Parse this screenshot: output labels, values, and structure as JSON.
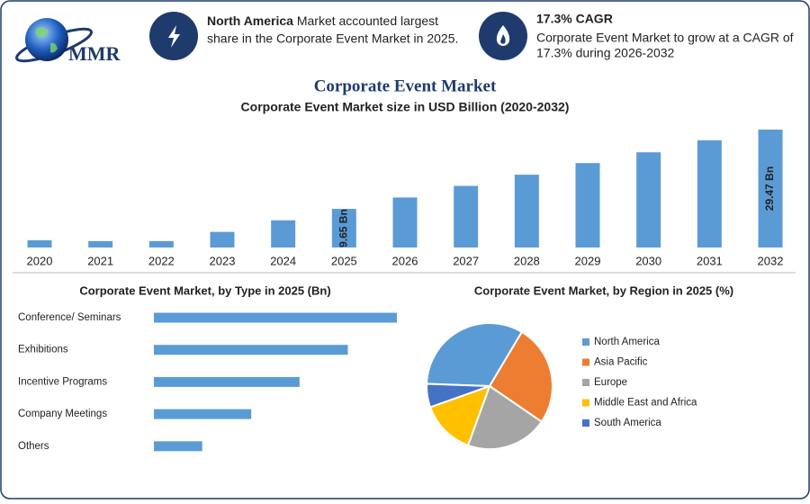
{
  "header": {
    "logo_text": "MMR",
    "info_1": {
      "bold": "North America",
      "line_1": "Market accounted largest",
      "line_2": "share in the Corporate Event Market in 2025."
    },
    "info_2": {
      "bold": "17.3% CAGR",
      "line_1": "Corporate Event Market to grow at a CAGR of",
      "line_2": "17.3% during 2026-2032"
    },
    "title": "Corporate Event Market"
  },
  "chart_data": [
    {
      "type": "bar",
      "title": "Corporate Event Market size in USD Billion (2020-2032)",
      "categories": [
        "2020",
        "2021",
        "2022",
        "2023",
        "2024",
        "2025",
        "2026",
        "2027",
        "2028",
        "2029",
        "2030",
        "2031",
        "2032"
      ],
      "values": [
        1.8,
        1.6,
        1.6,
        3.9,
        6.8,
        9.65,
        12.5,
        15.4,
        18.2,
        21.1,
        23.8,
        26.8,
        29.47
      ],
      "value_labels": [
        null,
        null,
        null,
        null,
        null,
        "9.65 Bn",
        null,
        null,
        null,
        null,
        null,
        null,
        "29.47 Bn"
      ],
      "color": "#5b9bd5"
    },
    {
      "type": "hbar",
      "title": "Corporate Event Market, by Type in 2025 (Bn)",
      "categories": [
        "Conference/ Seminars",
        "Exhibitions",
        "Incentive Programs",
        "Company Meetings",
        "Others"
      ],
      "values": [
        3.22,
        2.57,
        1.93,
        1.29,
        0.64
      ],
      "color": "#5b9bd5"
    },
    {
      "type": "pie",
      "title": "Corporate Event Market, by Region in 2025 (%)",
      "categories": [
        "North America",
        "Asia Pacific",
        "Europe",
        "Middle East and Africa",
        "South America"
      ],
      "values": [
        33,
        26,
        21,
        14,
        6
      ],
      "colors": [
        "#5b9bd5",
        "#ed7d31",
        "#a5a5a5",
        "#ffc000",
        "#4472c4"
      ]
    }
  ]
}
